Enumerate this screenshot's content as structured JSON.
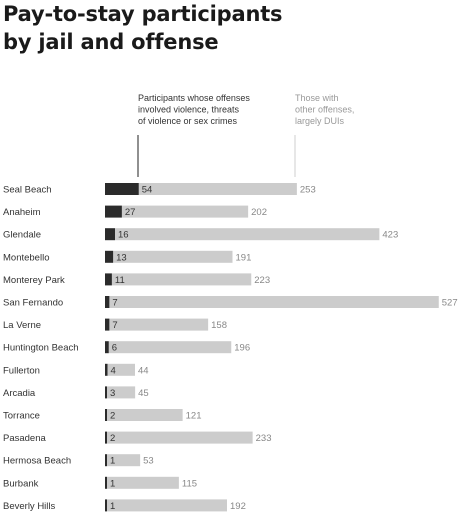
{
  "title_line1": "Pay-to-stay participants",
  "title_line2": "by jail and offense",
  "chart_data": {
    "type": "bar",
    "orientation": "horizontal",
    "stacked": true,
    "categories": [
      "Seal Beach",
      "Anaheim",
      "Glendale",
      "Montebello",
      "Monterey Park",
      "San Fernando",
      "La Verne",
      "Huntington Beach",
      "Fullerton",
      "Arcadia",
      "Torrance",
      "Pasadena",
      "Hermosa Beach",
      "Burbank",
      "Beverly Hills"
    ],
    "series": [
      {
        "name": "Participants whose offenses involved violence, threats of violence or sex crimes",
        "color": "#2b2b2b",
        "values": [
          54,
          27,
          16,
          13,
          11,
          7,
          7,
          6,
          4,
          3,
          2,
          2,
          1,
          1,
          1
        ]
      },
      {
        "name": "Those with other offenses, largely DUIs",
        "color": "#cccccc",
        "values": [
          253,
          202,
          423,
          191,
          223,
          527,
          158,
          196,
          44,
          45,
          121,
          233,
          53,
          115,
          192
        ]
      }
    ],
    "annotations": {
      "violent_lines": [
        "Participants whose offenses",
        "involved violence, threats",
        "of violence or sex crimes"
      ],
      "other_lines": [
        "Those with",
        "other offenses,",
        "largely DUIs"
      ]
    },
    "label_colors": {
      "violent": "#333333",
      "other": "#888888",
      "annotation_other": "#999999"
    }
  }
}
